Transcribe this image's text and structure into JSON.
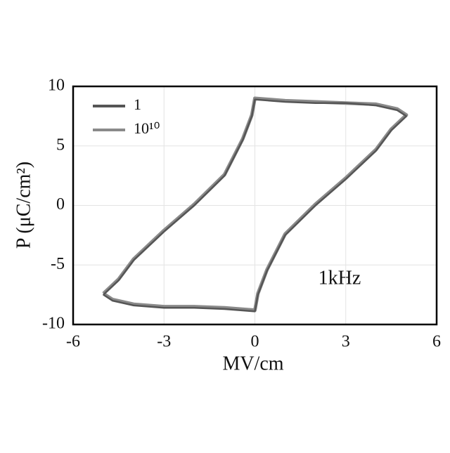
{
  "chart_data": {
    "type": "line",
    "xlabel": "MV/cm",
    "ylabel": "P (μC/cm²)",
    "annotation": "1kHz",
    "x": [
      -5,
      -4.5,
      -4,
      -3,
      -2,
      -1,
      -0.4,
      -0.1,
      0,
      1,
      2,
      3,
      4,
      4.7,
      5,
      4.5,
      4,
      3,
      2,
      1,
      0.4,
      0.1,
      0,
      -1,
      -2,
      -3,
      -4,
      -4.7,
      -5
    ],
    "series": [
      {
        "name": "1",
        "color": "#555555",
        "values": [
          -7.5,
          -6.3,
          -4.6,
          -2.2,
          0,
          2.5,
          5.5,
          7.5,
          8.9,
          8.7,
          8.6,
          8.6,
          8.4,
          8.0,
          7.5,
          6.3,
          4.6,
          2.2,
          0,
          -2.5,
          -5.5,
          -7.5,
          -8.9,
          -8.7,
          -8.6,
          -8.6,
          -8.4,
          -8.0,
          -7.5
        ]
      },
      {
        "name": "10¹⁰",
        "color": "#8a8a8a",
        "values": [
          -7.4,
          -6.2,
          -4.5,
          -2.1,
          0.1,
          2.6,
          5.6,
          7.6,
          9.0,
          8.8,
          8.7,
          8.6,
          8.5,
          8.1,
          7.6,
          6.4,
          4.7,
          2.3,
          0.1,
          -2.4,
          -5.4,
          -7.4,
          -8.8,
          -8.6,
          -8.5,
          -8.5,
          -8.3,
          -7.9,
          -7.4
        ]
      }
    ],
    "xlim": [
      -6,
      6
    ],
    "ylim": [
      -10,
      10
    ],
    "xticks": [
      -6,
      -3,
      0,
      3,
      6
    ],
    "yticks": [
      10,
      5,
      0,
      -5,
      -10
    ],
    "grid": true,
    "legend": "upper-left"
  }
}
